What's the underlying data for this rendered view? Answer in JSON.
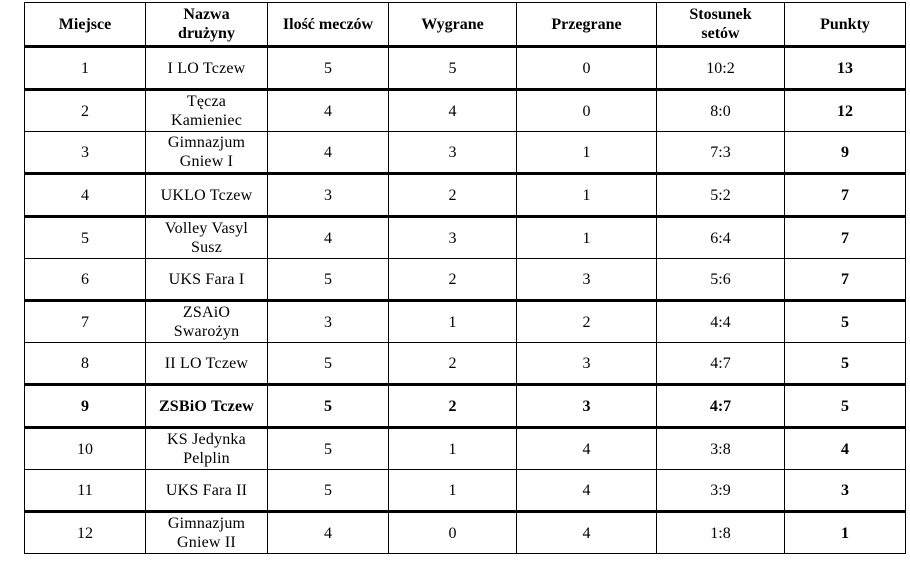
{
  "headers": {
    "place": "Miejsce",
    "team_line1": "Nazwa",
    "team_line2": "drużyny",
    "matches": "Ilość meczów",
    "won": "Wygrane",
    "lost": "Przegrane",
    "sets_line1": "Stosunek",
    "sets_line2": "setów",
    "points": "Punkty"
  },
  "rows": [
    {
      "place": "1",
      "team1": "I LO Tczew",
      "team2": "",
      "matches": "5",
      "won": "5",
      "lost": "0",
      "sets": "10:2",
      "points": "13"
    },
    {
      "place": "2",
      "team1": "Tęcza",
      "team2": "Kamieniec",
      "matches": "4",
      "won": "4",
      "lost": "0",
      "sets": "8:0",
      "points": "12"
    },
    {
      "place": "3",
      "team1": "Gimnazjum",
      "team2": "Gniew I",
      "matches": "4",
      "won": "3",
      "lost": "1",
      "sets": "7:3",
      "points": "9"
    },
    {
      "place": "4",
      "team1": "UKLO Tczew",
      "team2": "",
      "matches": "3",
      "won": "2",
      "lost": "1",
      "sets": "5:2",
      "points": "7"
    },
    {
      "place": "5",
      "team1": "Volley Vasyl",
      "team2": "Susz",
      "matches": "4",
      "won": "3",
      "lost": "1",
      "sets": "6:4",
      "points": "7"
    },
    {
      "place": "6",
      "team1": "UKS Fara I",
      "team2": "",
      "matches": "5",
      "won": "2",
      "lost": "3",
      "sets": "5:6",
      "points": "7"
    },
    {
      "place": "7",
      "team1": "ZSAiO",
      "team2": "Swarożyn",
      "matches": "3",
      "won": "1",
      "lost": "2",
      "sets": "4:4",
      "points": "5"
    },
    {
      "place": "8",
      "team1": "II LO Tczew",
      "team2": "",
      "matches": "5",
      "won": "2",
      "lost": "3",
      "sets": "4:7",
      "points": "5"
    },
    {
      "place": "9",
      "team1": "ZSBiO Tczew",
      "team2": "",
      "matches": "5",
      "won": "2",
      "lost": "3",
      "sets": "4:7",
      "points": "5"
    },
    {
      "place": "10",
      "team1": "KS Jedynka",
      "team2": "Pelplin",
      "matches": "5",
      "won": "1",
      "lost": "4",
      "sets": "3:8",
      "points": "4"
    },
    {
      "place": "11",
      "team1": "UKS Fara II",
      "team2": "",
      "matches": "5",
      "won": "1",
      "lost": "4",
      "sets": "3:9",
      "points": "3"
    },
    {
      "place": "12",
      "team1": "Gimnazjum",
      "team2": "Gniew II",
      "matches": "4",
      "won": "0",
      "lost": "4",
      "sets": "1:8",
      "points": "1"
    }
  ]
}
